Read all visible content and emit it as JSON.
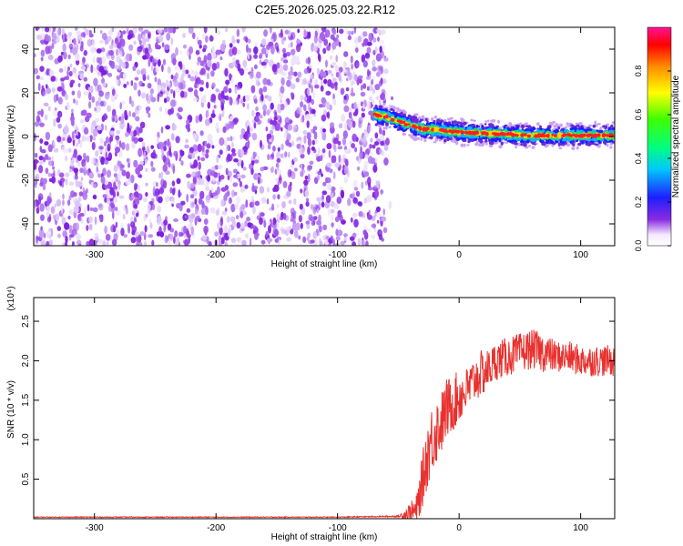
{
  "title": "C2E5.2026.025.03.22.R12",
  "colors": {
    "spectral_points": "#8a2be2",
    "snr_line": "#e8312e",
    "axis": "#000000"
  },
  "chart_data": [
    {
      "type": "heatmap",
      "xlabel": "Height of straight line (km)",
      "ylabel": "Frequency (Hz)",
      "xlim": [
        -350,
        128
      ],
      "ylim": [
        -50,
        50
      ],
      "x_ticks": [
        -300,
        -200,
        -100,
        0,
        100
      ],
      "x_tick_labels": [
        "-300",
        "-200",
        "-100",
        "0",
        "100"
      ],
      "y_ticks": [
        -40,
        -20,
        0,
        20,
        40
      ],
      "y_tick_labels": [
        "-40",
        "-20",
        "0",
        "20",
        "40"
      ],
      "noise_region_x": [
        -350,
        -60
      ],
      "signal_ridge": {
        "x": [
          -70,
          -60,
          -50,
          -40,
          -30,
          -20,
          -10,
          0,
          20,
          40,
          60,
          80,
          100,
          128
        ],
        "freq": [
          10,
          9,
          7,
          5,
          3.5,
          3,
          2.5,
          2,
          1.5,
          1,
          0.5,
          0.5,
          0.5,
          0.5
        ]
      },
      "colorbar": {
        "label": "Normalized spectral amplitude",
        "range": [
          0,
          1
        ],
        "ticks": [
          0.0,
          0.2,
          0.4,
          0.6,
          0.8
        ],
        "tick_labels": [
          "0.0",
          "0.2",
          "0.4",
          "0.6",
          "0.8"
        ]
      },
      "grid": false
    },
    {
      "type": "line",
      "xlabel": "Height of straight line (km)",
      "ylabel": "SNR (10 * v/v)",
      "y_multiplier": "(x10⁴)",
      "xlim": [
        -350,
        128
      ],
      "ylim": [
        0,
        2.8
      ],
      "x_ticks": [
        -300,
        -200,
        -100,
        0,
        100
      ],
      "x_tick_labels": [
        "-300",
        "-200",
        "-100",
        "0",
        "100"
      ],
      "y_ticks": [
        0.5,
        1.0,
        1.5,
        2.0,
        2.5
      ],
      "y_tick_labels": [
        "0.5",
        "1.0",
        "1.5",
        "2.0",
        "2.5"
      ],
      "series": [
        {
          "x": [
            -350,
            -100,
            -50,
            -35,
            -30,
            -25,
            -20,
            -15,
            -10,
            -5,
            0,
            5,
            10,
            15,
            20,
            25,
            30,
            40,
            50,
            60,
            70,
            80,
            90,
            100,
            110,
            120,
            128
          ],
          "y": [
            0.02,
            0.02,
            0.03,
            0.1,
            0.5,
            0.9,
            1.1,
            1.2,
            1.4,
            1.45,
            1.55,
            1.6,
            1.7,
            1.8,
            1.85,
            1.9,
            2.0,
            2.05,
            2.1,
            2.15,
            2.1,
            2.05,
            2.05,
            2.0,
            2.0,
            2.0,
            2.0
          ],
          "noise_amplitude": [
            0.005,
            0.005,
            0.01,
            0.2,
            0.35,
            0.45,
            0.45,
            0.4,
            0.4,
            0.35,
            0.35,
            0.3,
            0.3,
            0.3,
            0.3,
            0.25,
            0.25,
            0.25,
            0.25,
            0.25,
            0.25,
            0.2,
            0.2,
            0.2,
            0.2,
            0.2,
            0.2
          ]
        }
      ],
      "grid": false
    }
  ]
}
